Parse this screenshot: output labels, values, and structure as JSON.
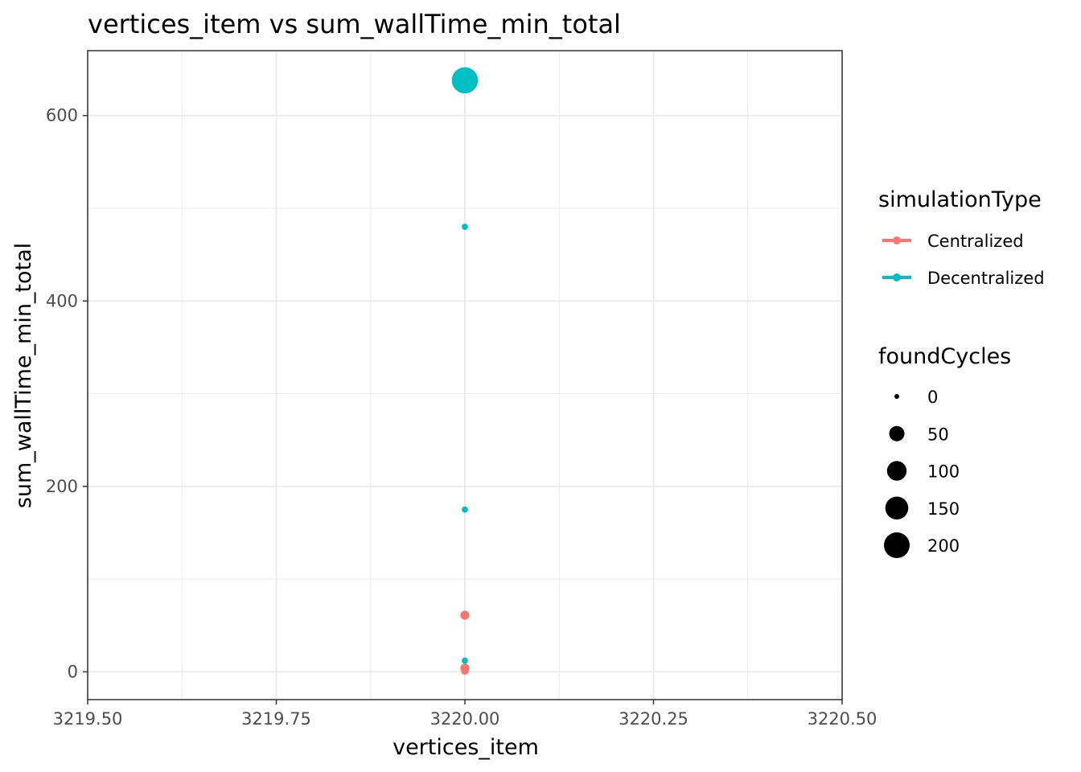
{
  "chart_data": {
    "type": "scatter",
    "title": "vertices_item  vs  sum_wallTime_min_total",
    "xlabel": "vertices_item",
    "ylabel": "sum_wallTime_min_total",
    "xlim": [
      3219.5,
      3220.5
    ],
    "ylim": [
      -30,
      670
    ],
    "x_ticks": [
      3219.5,
      3219.75,
      3220.0,
      3220.25,
      3220.5
    ],
    "x_tick_labels": [
      "3219.50",
      "3219.75",
      "3220.00",
      "3220.25",
      "3220.50"
    ],
    "y_ticks": [
      0,
      200,
      400,
      600
    ],
    "y_tick_labels": [
      "0",
      "200",
      "400",
      "600"
    ],
    "grid": true,
    "legend_placement": "right",
    "color_legend": {
      "title": "simulationType",
      "entries": [
        {
          "name": "Centralized",
          "color": "#F8766D"
        },
        {
          "name": "Decentralized",
          "color": "#00BFC4"
        }
      ]
    },
    "size_legend": {
      "title": "foundCycles",
      "breaks": [
        0,
        50,
        100,
        150,
        200
      ],
      "labels": [
        "0",
        "50",
        "100",
        "150",
        "200"
      ],
      "color": "#000000"
    },
    "series": [
      {
        "name": "Decentralized",
        "color": "#00BFC4",
        "points": [
          {
            "x": 3220.0,
            "y": 638,
            "foundCycles": 210
          },
          {
            "x": 3220.0,
            "y": 480,
            "foundCycles": 1
          },
          {
            "x": 3220.0,
            "y": 175,
            "foundCycles": 1
          },
          {
            "x": 3220.0,
            "y": 12,
            "foundCycles": 1
          }
        ]
      },
      {
        "name": "Centralized",
        "color": "#F8766D",
        "points": [
          {
            "x": 3220.0,
            "y": 61,
            "foundCycles": 8
          },
          {
            "x": 3220.0,
            "y": 4,
            "foundCycles": 8
          },
          {
            "x": 3220.0,
            "y": 1,
            "foundCycles": 4
          }
        ]
      }
    ]
  }
}
